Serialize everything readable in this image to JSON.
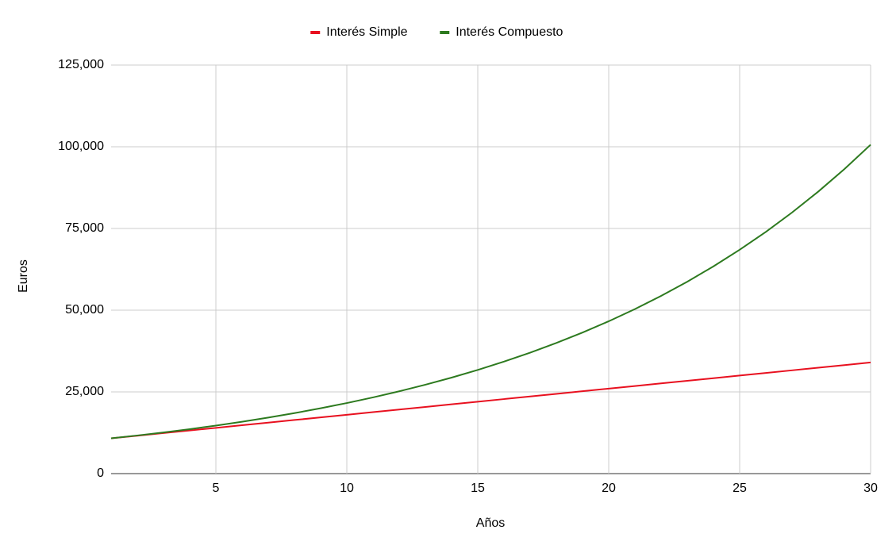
{
  "chart_data": {
    "type": "line",
    "x_label": "Años",
    "y_label": "Euros",
    "x": [
      1,
      2,
      3,
      4,
      5,
      6,
      7,
      8,
      9,
      10,
      11,
      12,
      13,
      14,
      15,
      16,
      17,
      18,
      19,
      20,
      21,
      22,
      23,
      24,
      25,
      26,
      27,
      28,
      29,
      30
    ],
    "series": [
      {
        "name": "Interés Simple",
        "color": "#e8101f",
        "values": [
          10800,
          11600,
          12400,
          13200,
          14000,
          14800,
          15600,
          16400,
          17200,
          18000,
          18800,
          19600,
          20400,
          21200,
          22000,
          22800,
          23600,
          24400,
          25200,
          26000,
          26800,
          27600,
          28400,
          29200,
          30000,
          30800,
          31600,
          32400,
          33200,
          34000
        ]
      },
      {
        "name": "Interés Compuesto",
        "color": "#2d7a1f",
        "values": [
          10800,
          11664,
          12597,
          13605,
          14693,
          15869,
          17138,
          18509,
          19990,
          21589,
          23316,
          25182,
          27196,
          29372,
          31722,
          34259,
          37000,
          39960,
          43157,
          46610,
          50338,
          54365,
          58715,
          63412,
          68485,
          73964,
          79881,
          86271,
          93173,
          100627
        ]
      }
    ],
    "xlim": [
      1,
      30
    ],
    "xticks": [
      5,
      10,
      15,
      20,
      25,
      30
    ],
    "ylim": [
      0,
      125000
    ],
    "yticks": [
      0,
      {
        "value": 25000,
        "label": "25,000"
      },
      {
        "value": 50000,
        "label": "50,000"
      },
      {
        "value": 75000,
        "label": "75,000"
      },
      {
        "value": 100000,
        "label": "100,000"
      },
      {
        "value": 125000,
        "label": "125,000"
      }
    ],
    "grid": true,
    "legend": "top"
  }
}
